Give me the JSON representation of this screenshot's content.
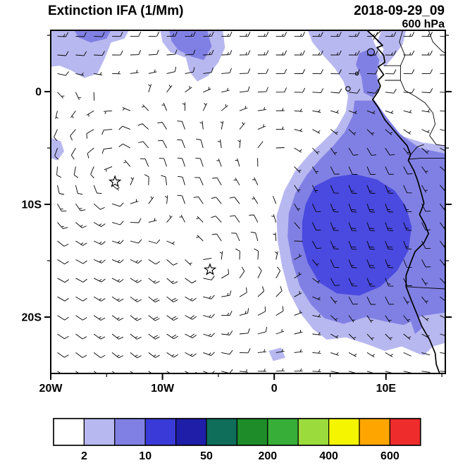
{
  "header": {
    "title": "Extinction IFA (1/Mm)",
    "datetime": "2018-09-29_09",
    "level": "600 hPa"
  },
  "chart_data": {
    "type": "heatmap",
    "title": "Extinction IFA (1/Mm)",
    "valid_time": "2018-09-29_09",
    "pressure_level": "600 hPa",
    "units": "1/Mm",
    "map_domain": {
      "lon_min": -20,
      "lon_max": 15.31,
      "lat_min": -25,
      "lat_max": 5.44
    },
    "x_ticks": [
      {
        "value": -20,
        "label": "20W"
      },
      {
        "value": -10,
        "label": "10W"
      },
      {
        "value": 0,
        "label": "0"
      },
      {
        "value": 10,
        "label": "10E"
      }
    ],
    "x_minor_ticks": [
      -15,
      -5,
      5,
      15
    ],
    "y_ticks": [
      {
        "value": 0,
        "label": "0"
      },
      {
        "value": -10,
        "label": "10S"
      },
      {
        "value": -20,
        "label": "20S"
      }
    ],
    "y_minor_ticks": [
      5,
      -5,
      -15
    ],
    "colorbar": {
      "colors": [
        "#FFFFFF",
        "#B8B8F0",
        "#8080E4",
        "#3A3AD8",
        "#1E1EA8",
        "#0E6E5A",
        "#1E8C28",
        "#37AE37",
        "#9BDC3C",
        "#F5F500",
        "#FFA500",
        "#EE2C2C"
      ],
      "levels": [
        2,
        5,
        10,
        20,
        50,
        100,
        200,
        300,
        400,
        500,
        600
      ],
      "boundary_labels": [
        "2",
        "10",
        "50",
        "200",
        "400",
        "600"
      ],
      "labeled_boundaries": [
        1,
        3,
        5,
        7,
        9,
        11
      ]
    },
    "fill_levels": {
      "light": "#B8B8F0",
      "medium": "#8080E4",
      "dark": "#4A4AE0"
    },
    "regions": [
      {
        "level": "light",
        "points": [
          [
            -20,
            5.44
          ],
          [
            -13,
            5.44
          ],
          [
            -13.4,
            4.7
          ],
          [
            -14.6,
            4.35
          ],
          [
            -15.1,
            3.1
          ],
          [
            -15.8,
            1.6
          ],
          [
            -17,
            1.2
          ],
          [
            -18.2,
            1.9
          ],
          [
            -19.2,
            2.3
          ],
          [
            -20,
            2.2
          ]
        ]
      },
      {
        "level": "light",
        "points": [
          [
            -10.2,
            5.44
          ],
          [
            -4.6,
            5.44
          ],
          [
            -4.4,
            3.9
          ],
          [
            -5,
            2.6
          ],
          [
            -5.9,
            1.4
          ],
          [
            -6.9,
            0.9
          ],
          [
            -7.6,
            1.8
          ],
          [
            -7.9,
            3
          ],
          [
            -9.3,
            3.5
          ],
          [
            -10,
            4.4
          ]
        ]
      },
      {
        "level": "light",
        "points": [
          [
            -20,
            -4.1
          ],
          [
            -19.1,
            -4.4
          ],
          [
            -18.8,
            -5.3
          ],
          [
            -19.4,
            -6.1
          ],
          [
            -20,
            -5.9
          ]
        ]
      },
      {
        "level": "light",
        "points": [
          [
            9.6,
            5.44
          ],
          [
            11.8,
            5.44
          ],
          [
            11.5,
            4.2
          ],
          [
            10.6,
            3
          ],
          [
            9.9,
            2.2
          ],
          [
            9.4,
            2.8
          ],
          [
            9.8,
            3.8
          ],
          [
            9.2,
            4.4
          ]
        ]
      },
      {
        "level": "light",
        "points": [
          [
            3,
            5.44
          ],
          [
            8.5,
            5.44
          ],
          [
            9,
            4.2
          ],
          [
            9.7,
            2.9
          ],
          [
            9.2,
            1.7
          ],
          [
            9.5,
            0.4
          ],
          [
            8.9,
            -0.6
          ],
          [
            9.6,
            -1.8
          ],
          [
            10.4,
            -3
          ],
          [
            11.6,
            -4
          ],
          [
            13.2,
            -4.5
          ],
          [
            15.31,
            -4.8
          ],
          [
            15.31,
            -22.3
          ],
          [
            14.2,
            -22.6
          ],
          [
            13.4,
            -23.4
          ],
          [
            12.8,
            -23.2
          ],
          [
            11.4,
            -22.6
          ],
          [
            9.9,
            -23
          ],
          [
            8.3,
            -22.4
          ],
          [
            6.4,
            -21.8
          ],
          [
            4.7,
            -22
          ],
          [
            3.5,
            -21.1
          ],
          [
            2.3,
            -19.6
          ],
          [
            1.3,
            -17.7
          ],
          [
            0.7,
            -15.5
          ],
          [
            0.3,
            -13.2
          ],
          [
            0.2,
            -11
          ],
          [
            0.9,
            -8.8
          ],
          [
            1.9,
            -7
          ],
          [
            3.1,
            -5.6
          ],
          [
            4.4,
            -4.4
          ],
          [
            5.6,
            -3.2
          ],
          [
            6.4,
            -1.8
          ],
          [
            6.6,
            -0.4
          ],
          [
            6.2,
            0.9
          ],
          [
            5.4,
            2.1
          ],
          [
            4.3,
            3.3
          ],
          [
            3.4,
            4.4
          ]
        ]
      },
      {
        "level": "light",
        "points": [
          [
            -0.5,
            -23
          ],
          [
            0.6,
            -22.7
          ],
          [
            1,
            -23.6
          ],
          [
            -0.1,
            -23.9
          ]
        ]
      },
      {
        "level": "medium",
        "points": [
          [
            -17.9,
            5.44
          ],
          [
            -14.6,
            5.44
          ],
          [
            -15,
            4.7
          ],
          [
            -16.4,
            4.35
          ],
          [
            -17.5,
            4.8
          ]
        ]
      },
      {
        "level": "medium",
        "points": [
          [
            -9.4,
            5.44
          ],
          [
            -6,
            5.44
          ],
          [
            -5.6,
            4
          ],
          [
            -6.3,
            2.8
          ],
          [
            -7.4,
            3.1
          ],
          [
            -8.6,
            3.7
          ],
          [
            -9.2,
            4.5
          ]
        ]
      },
      {
        "level": "medium",
        "points": [
          [
            7.6,
            3.4
          ],
          [
            8.8,
            3.9
          ],
          [
            9.4,
            2.8
          ],
          [
            9.1,
            1.6
          ],
          [
            9.4,
            0.4
          ],
          [
            8.8,
            -0.5
          ],
          [
            8,
            -0.1
          ],
          [
            7.8,
            1.3
          ],
          [
            7.3,
            2.4
          ]
        ]
      },
      {
        "level": "medium",
        "points": [
          [
            7.2,
            -0.8
          ],
          [
            9,
            -0.8
          ],
          [
            10,
            -2.2
          ],
          [
            11.3,
            -3.8
          ],
          [
            13,
            -5
          ],
          [
            15.31,
            -5.5
          ],
          [
            15.31,
            -19.6
          ],
          [
            13.2,
            -19.9
          ],
          [
            11.6,
            -20.7
          ],
          [
            10,
            -20.4
          ],
          [
            8.2,
            -20
          ],
          [
            6.2,
            -20.6
          ],
          [
            4.5,
            -20.1
          ],
          [
            3.3,
            -18.9
          ],
          [
            2.3,
            -17.3
          ],
          [
            1.6,
            -15.1
          ],
          [
            1.2,
            -12.9
          ],
          [
            1.3,
            -10.8
          ],
          [
            1.9,
            -9
          ],
          [
            2.9,
            -7.4
          ],
          [
            4.1,
            -6
          ],
          [
            5.3,
            -4.8
          ],
          [
            6.3,
            -3.6
          ],
          [
            7,
            -2.2
          ]
        ]
      },
      {
        "level": "medium",
        "points": [
          [
            11.9,
            -17.5
          ],
          [
            12.6,
            -19.2
          ],
          [
            13.2,
            -21
          ],
          [
            12.6,
            -21.5
          ],
          [
            12,
            -19.7
          ],
          [
            11.5,
            -18.2
          ]
        ]
      },
      {
        "level": "dark",
        "points": [
          [
            2.8,
            -10
          ],
          [
            3.6,
            -8.4
          ],
          [
            5.2,
            -7.6
          ],
          [
            7.2,
            -7.3
          ],
          [
            9.2,
            -7.8
          ],
          [
            10.8,
            -8.8
          ],
          [
            11.8,
            -10.2
          ],
          [
            12.3,
            -12
          ],
          [
            12,
            -14.1
          ],
          [
            11,
            -15.9
          ],
          [
            9.5,
            -17.3
          ],
          [
            7.6,
            -18.1
          ],
          [
            5.6,
            -17.9
          ],
          [
            4,
            -16.9
          ],
          [
            3,
            -15.2
          ],
          [
            2.5,
            -13.4
          ],
          [
            2.5,
            -11.6
          ]
        ]
      }
    ],
    "coastline": [
      [
        8.3,
        5.44
      ],
      [
        8.9,
        4.9
      ],
      [
        9.7,
        4.1
      ],
      [
        9.2,
        3.9
      ],
      [
        9.8,
        3.2
      ],
      [
        9.9,
        2.6
      ],
      [
        9.3,
        2.2
      ],
      [
        9.8,
        1.5
      ],
      [
        9.3,
        1
      ],
      [
        9.5,
        0.5
      ],
      [
        9.3,
        0
      ],
      [
        8.8,
        -0.7
      ],
      [
        9.3,
        -1.4
      ],
      [
        9.9,
        -2.5
      ],
      [
        11.1,
        -3.9
      ],
      [
        11.9,
        -4.8
      ],
      [
        12.2,
        -5.6
      ],
      [
        12,
        -6.1
      ],
      [
        12.5,
        -7
      ],
      [
        12.8,
        -7.8
      ],
      [
        13.1,
        -8.8
      ],
      [
        13.4,
        -9.9
      ],
      [
        13,
        -10.9
      ],
      [
        13.5,
        -11.8
      ],
      [
        13.8,
        -12.6
      ],
      [
        13.4,
        -13.4
      ],
      [
        12.6,
        -14.2
      ],
      [
        12.2,
        -15.2
      ],
      [
        11.8,
        -16.3
      ],
      [
        11.8,
        -17.3
      ],
      [
        12.3,
        -18.6
      ],
      [
        12.8,
        -19.8
      ],
      [
        13.2,
        -20.8
      ],
      [
        13.9,
        -22
      ],
      [
        14.4,
        -23.2
      ],
      [
        14.5,
        -24.2
      ],
      [
        14.8,
        -25
      ]
    ],
    "borders": [
      [
        [
          9.6,
          5.44
        ],
        [
          9,
          4.9
        ],
        [
          8.9,
          4.6
        ]
      ],
      [
        [
          11.5,
          5.44
        ],
        [
          11.2,
          4.4
        ],
        [
          11.7,
          3.2
        ],
        [
          11.3,
          2.3
        ],
        [
          11.3,
          1
        ],
        [
          11.7,
          0.1
        ],
        [
          12.6,
          -0.4
        ],
        [
          13.5,
          -1
        ],
        [
          14.2,
          -1.9
        ],
        [
          14.4,
          -2.9
        ],
        [
          13.9,
          -3.9
        ],
        [
          14.5,
          -4.7
        ],
        [
          15.31,
          -4.8
        ]
      ],
      [
        [
          9.8,
          2.3
        ],
        [
          11.3,
          2.3
        ]
      ],
      [
        [
          9.9,
          1
        ],
        [
          11.3,
          1
        ]
      ],
      [
        [
          12,
          -6
        ],
        [
          13.2,
          -5.9
        ],
        [
          14.3,
          -5.9
        ],
        [
          15.31,
          -5.9
        ]
      ],
      [
        [
          12.2,
          -5.6
        ],
        [
          12.8,
          -4.9
        ],
        [
          13.4,
          -4.7
        ]
      ],
      [
        [
          11.8,
          -17.3
        ],
        [
          13.5,
          -17.4
        ],
        [
          15.31,
          -17.5
        ]
      ],
      [
        [
          13.8,
          5.44
        ],
        [
          14.2,
          4.4
        ],
        [
          15,
          3.6
        ],
        [
          15.31,
          3.4
        ]
      ]
    ],
    "islands": [
      {
        "lon": 8.65,
        "lat": 3.5,
        "r": 5
      },
      {
        "lon": 7.4,
        "lat": 1.6,
        "r": 2.2
      },
      {
        "lon": 6.6,
        "lat": 0.25,
        "r": 3.2
      }
    ],
    "markers": [
      {
        "symbol": "star",
        "lon": -14.25,
        "lat": -8.0
      },
      {
        "symbol": "star",
        "lon": -5.75,
        "lat": -15.8
      }
    ],
    "wind_field": {
      "barb_full_kt": 10,
      "barb_half_kt": 5,
      "grid": {
        "lon_start": -19.4,
        "lon_step": 1.63,
        "cols": 22,
        "lat_start": 4.9,
        "lat_step": -1.65,
        "rows": 19
      },
      "background_easterly": {
        "speed": 12,
        "center_lat": 4,
        "width": 5
      },
      "westward_drift": 2,
      "vortices": [
        {
          "lon": -14.25,
          "lat": -8.0,
          "strength": 14,
          "radius": 7,
          "rotation": "clockwise"
        },
        {
          "lon": -5.75,
          "lat": -15.8,
          "strength": 12,
          "radius": 6,
          "rotation": "clockwise"
        }
      ],
      "coastal_southerly_jet": {
        "lon": 8,
        "lat": -12,
        "strength": 20,
        "lon_width": 5.5,
        "lat_width": 7
      },
      "southeast_trades": {
        "lon": -13,
        "lat": -22,
        "strength": 8,
        "lon_width": 9,
        "lat_width": 5
      }
    }
  }
}
